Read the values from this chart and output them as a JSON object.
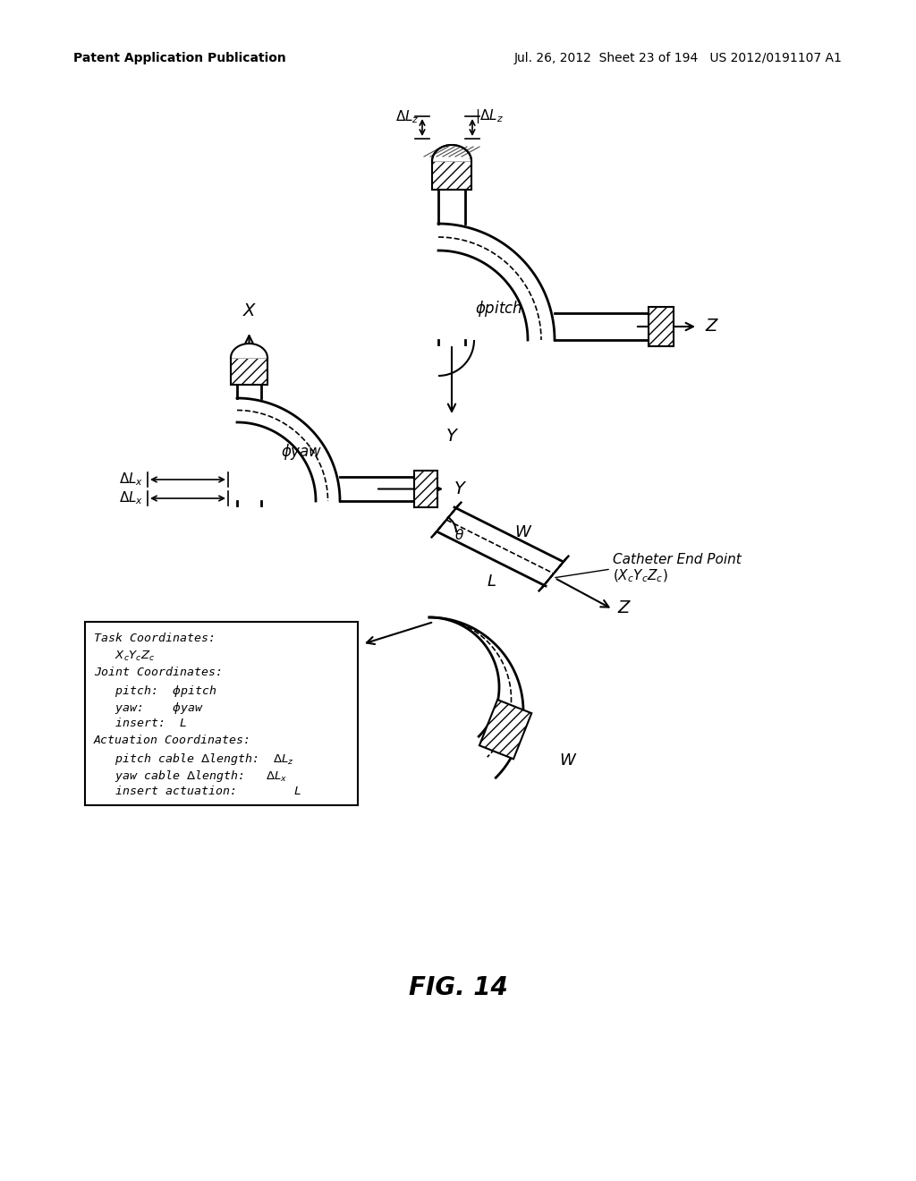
{
  "title": "FIG. 14",
  "header_left": "Patent Application Publication",
  "header_right": "Jul. 26, 2012  Sheet 23 of 194   US 2012/0191107 A1",
  "background_color": "#ffffff",
  "text_color": "#000000"
}
